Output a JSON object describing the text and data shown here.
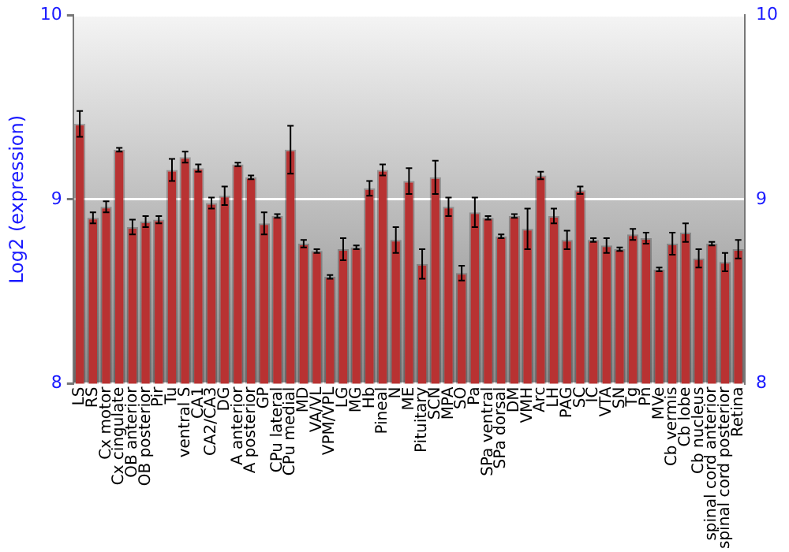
{
  "chart_data": {
    "type": "bar",
    "ylabel": "Log2 (expression)",
    "categories": [
      "LS",
      "RS",
      "Cx motor",
      "Cx cingulate",
      "OB anterior",
      "OB posterior",
      "Pir",
      "Tu",
      "ventral S",
      "CA1",
      "CA2/CA3",
      "DG",
      "A anterior",
      "A posterior",
      "GP",
      "CPu lateral",
      "CPu medial",
      "MD",
      "VA/VL",
      "VPM/VPL",
      "LG",
      "MG",
      "Hb",
      "Pineal",
      "N",
      "ME",
      "Pituitary",
      "SCN",
      "MPA",
      "SO",
      "Pa",
      "SPa ventral",
      "SPa dorsal",
      "DM",
      "VMH",
      "Arc",
      "LH",
      "PAG",
      "SC",
      "IC",
      "VTA",
      "SN",
      "Tg",
      "Pn",
      "MVe",
      "Cb vermis",
      "Cb lobe",
      "Cb nucleus",
      "spinal cord anterior",
      "spinal cord posterior",
      "Retina"
    ],
    "values": [
      9.41,
      8.9,
      8.96,
      9.27,
      8.85,
      8.88,
      8.89,
      9.16,
      9.23,
      9.17,
      8.98,
      9.02,
      9.19,
      9.12,
      8.87,
      8.91,
      9.27,
      8.76,
      8.72,
      8.58,
      8.73,
      8.74,
      9.06,
      9.16,
      8.78,
      9.1,
      8.65,
      9.12,
      8.96,
      8.6,
      8.93,
      8.9,
      8.8,
      8.91,
      8.84,
      9.13,
      8.91,
      8.78,
      9.05,
      8.78,
      8.75,
      8.73,
      8.81,
      8.79,
      8.62,
      8.76,
      8.82,
      8.68,
      8.76,
      8.66,
      8.73
    ],
    "errors": [
      0.07,
      0.03,
      0.03,
      0.01,
      0.04,
      0.03,
      0.02,
      0.06,
      0.03,
      0.02,
      0.03,
      0.05,
      0.01,
      0.01,
      0.06,
      0.01,
      0.13,
      0.02,
      0.01,
      0.01,
      0.06,
      0.01,
      0.04,
      0.03,
      0.07,
      0.07,
      0.08,
      0.09,
      0.05,
      0.04,
      0.08,
      0.01,
      0.01,
      0.01,
      0.11,
      0.02,
      0.04,
      0.05,
      0.02,
      0.01,
      0.04,
      0.01,
      0.03,
      0.03,
      0.01,
      0.06,
      0.05,
      0.05,
      0.01,
      0.05,
      0.05
    ],
    "color": "#b83232",
    "ylim": [
      8,
      10
    ],
    "yticks": [
      8,
      9,
      10
    ],
    "y2lim": [
      8,
      10
    ],
    "y2ticks": [
      8,
      9,
      10
    ],
    "grid": "y",
    "legend": false
  }
}
